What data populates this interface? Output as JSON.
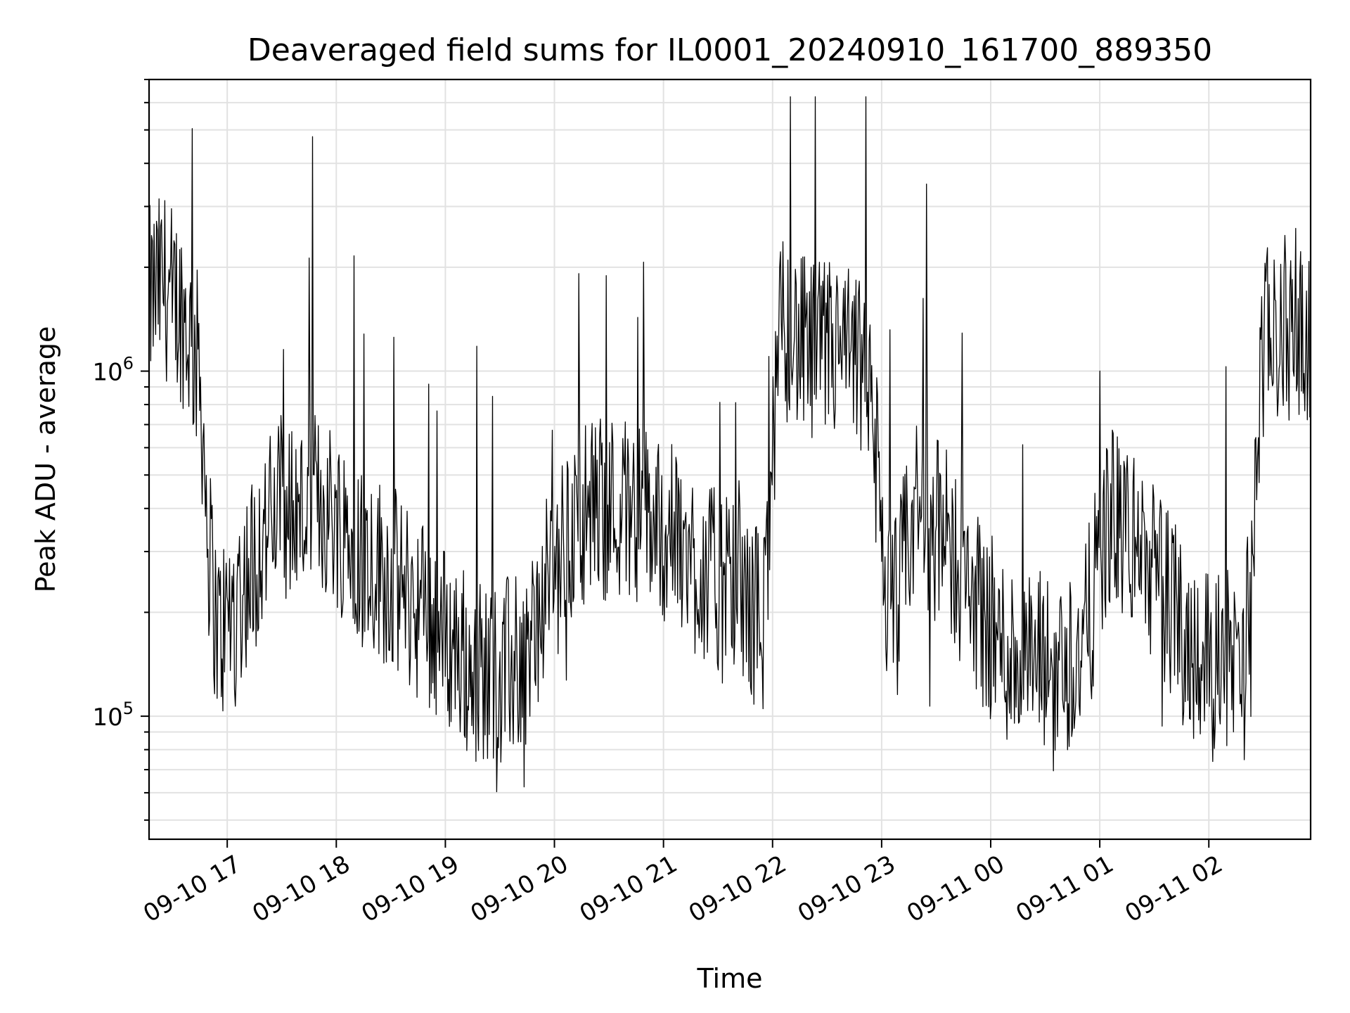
{
  "chart_data": {
    "type": "line",
    "title": "Deaveraged field sums for IL0001_20240910_161700_889350",
    "xlabel": "Time",
    "ylabel": "Peak ADU - average",
    "yscale": "log",
    "grid": true,
    "xlim": [
      "2024-09-10 16:17",
      "2024-09-11 02:56"
    ],
    "ylim": [
      44000,
      7000000
    ],
    "x_ticks": [
      {
        "time": "2024-09-10 17:00",
        "label": "09-10 17"
      },
      {
        "time": "2024-09-10 18:00",
        "label": "09-10 18"
      },
      {
        "time": "2024-09-10 19:00",
        "label": "09-10 19"
      },
      {
        "time": "2024-09-10 20:00",
        "label": "09-10 20"
      },
      {
        "time": "2024-09-10 21:00",
        "label": "09-10 21"
      },
      {
        "time": "2024-09-10 22:00",
        "label": "09-10 22"
      },
      {
        "time": "2024-09-10 23:00",
        "label": "09-10 23"
      },
      {
        "time": "2024-09-11 00:00",
        "label": "09-11 00"
      },
      {
        "time": "2024-09-11 01:00",
        "label": "09-11 01"
      },
      {
        "time": "2024-09-11 02:00",
        "label": "09-11 02"
      }
    ],
    "y_ticks": [
      {
        "value": 100000,
        "base": "10",
        "exp": "5"
      },
      {
        "value": 1000000,
        "base": "10",
        "exp": "6"
      }
    ],
    "series": [
      {
        "color": "#000000",
        "x": [
          "2024-09-10 16:17",
          "2024-09-10 16:25",
          "2024-09-10 16:35",
          "2024-09-10 16:45",
          "2024-09-10 16:50",
          "2024-09-10 16:55",
          "2024-09-10 17:00",
          "2024-09-10 17:10",
          "2024-09-10 17:20",
          "2024-09-10 17:30",
          "2024-09-10 17:40",
          "2024-09-10 17:50",
          "2024-09-10 18:00",
          "2024-09-10 18:15",
          "2024-09-10 18:30",
          "2024-09-10 18:45",
          "2024-09-10 19:00",
          "2024-09-10 19:15",
          "2024-09-10 19:30",
          "2024-09-10 19:45",
          "2024-09-10 20:00",
          "2024-09-10 20:15",
          "2024-09-10 20:30",
          "2024-09-10 20:45",
          "2024-09-10 21:00",
          "2024-09-10 21:15",
          "2024-09-10 21:30",
          "2024-09-10 21:45",
          "2024-09-10 21:55",
          "2024-09-10 22:05",
          "2024-09-10 22:20",
          "2024-09-10 22:35",
          "2024-09-10 22:50",
          "2024-09-10 22:55",
          "2024-09-10 23:05",
          "2024-09-10 23:20",
          "2024-09-10 23:35",
          "2024-09-10 23:50",
          "2024-09-11 00:05",
          "2024-09-11 00:20",
          "2024-09-11 00:35",
          "2024-09-11 00:50",
          "2024-09-11 01:05",
          "2024-09-11 01:20",
          "2024-09-11 01:35",
          "2024-09-11 01:50",
          "2024-09-11 02:05",
          "2024-09-11 02:20",
          "2024-09-11 02:30",
          "2024-09-11 02:40",
          "2024-09-11 02:50",
          "2024-09-11 02:56"
        ],
        "y": [
          1600000,
          1800000,
          1500000,
          1000000,
          300000,
          170000,
          190000,
          250000,
          330000,
          420000,
          380000,
          420000,
          380000,
          300000,
          250000,
          210000,
          170000,
          140000,
          130000,
          150000,
          270000,
          390000,
          410000,
          400000,
          350000,
          290000,
          240000,
          210000,
          190000,
          1400000,
          1100000,
          1150000,
          1000000,
          700000,
          180000,
          420000,
          320000,
          230000,
          160000,
          140000,
          140000,
          150000,
          380000,
          320000,
          230000,
          160000,
          150000,
          140000,
          1200000,
          1300000,
          1400000,
          1300000
        ]
      }
    ]
  }
}
